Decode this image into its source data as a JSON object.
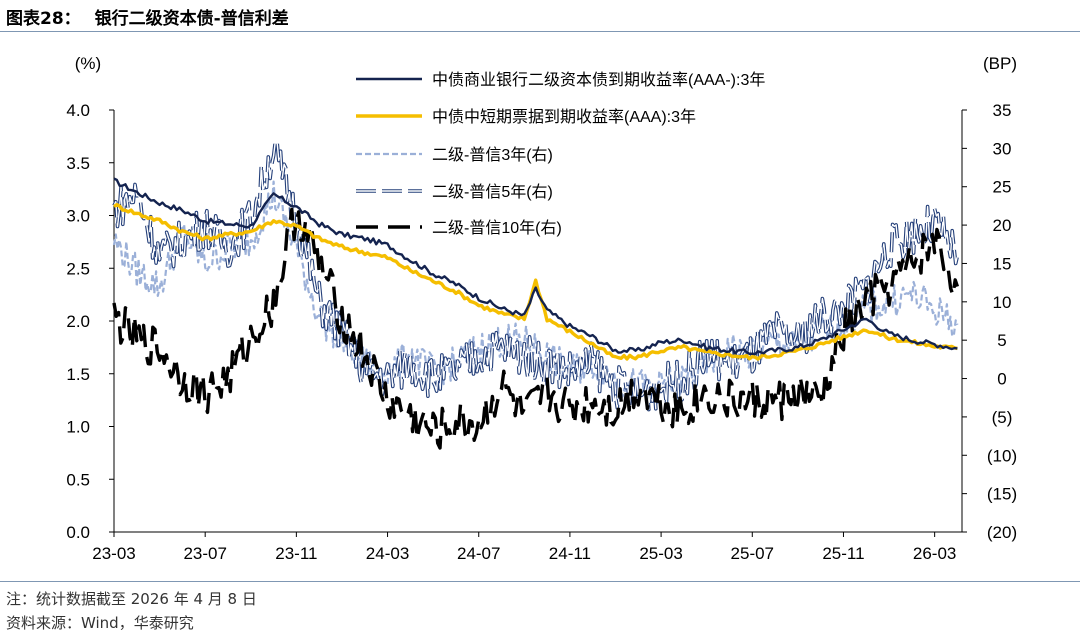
{
  "header": {
    "figure_label": "图表28：",
    "title": "银行二级资本债-普信利差"
  },
  "footer": {
    "note": "注：统计数据截至 2026 年 4 月 8 日",
    "source": "资料来源：Wind，华泰研究"
  },
  "colors": {
    "navy": "#14234f",
    "yellow": "#f5be00",
    "light_blue": "#9bb0d8",
    "five_y_outline": "#25407a",
    "five_y_fill": "#ffffff",
    "black": "#000000",
    "rule": "#7f97b3"
  },
  "chart_data": {
    "type": "line",
    "left_axis_label": "(%)",
    "right_axis_label": "(BP)",
    "left_ylim": [
      0,
      4
    ],
    "left_ticks": [
      "0.0",
      "0.5",
      "1.0",
      "1.5",
      "2.0",
      "2.5",
      "3.0",
      "3.5",
      "4.0"
    ],
    "right_ylim": [
      -20,
      35
    ],
    "right_ticks": [
      "(20)",
      "(15)",
      "(10)",
      "(5)",
      "0",
      "5",
      "10",
      "15",
      "20",
      "25",
      "30",
      "35"
    ],
    "x_ticks": [
      "23-03",
      "23-07",
      "23-11",
      "24-03",
      "24-07",
      "24-11",
      "25-03",
      "25-07",
      "25-11",
      "26-03"
    ],
    "x_range_months": [
      0,
      37.2
    ],
    "series": [
      {
        "name": "中债商业银行二级资本债到期收益率(AAA-):3年",
        "axis": "left",
        "style": "navy",
        "x": [
          0,
          1,
          2,
          3,
          4,
          5,
          6,
          7,
          8,
          9,
          10,
          11,
          12,
          13,
          14,
          15,
          16,
          17,
          18,
          18.5,
          19,
          20,
          21,
          22,
          23,
          24,
          25,
          26,
          27,
          28,
          29,
          30,
          31,
          32,
          33,
          34,
          35,
          36,
          37
        ],
        "values": [
          3.33,
          3.22,
          3.12,
          3.05,
          2.95,
          2.92,
          2.9,
          3.2,
          3.08,
          2.92,
          2.82,
          2.78,
          2.72,
          2.58,
          2.45,
          2.35,
          2.22,
          2.12,
          2.05,
          2.3,
          2.1,
          1.95,
          1.85,
          1.72,
          1.72,
          1.8,
          1.82,
          1.75,
          1.72,
          1.7,
          1.72,
          1.75,
          1.82,
          1.92,
          2.02,
          1.88,
          1.82,
          1.78,
          1.74
        ]
      },
      {
        "name": "中债中短期票据到期收益率(AAA):3年",
        "axis": "left",
        "style": "yellow",
        "x": [
          0,
          1,
          2,
          3,
          4,
          5,
          6,
          7,
          8,
          9,
          10,
          11,
          12,
          13,
          14,
          15,
          16,
          17,
          18,
          18.5,
          19,
          20,
          21,
          22,
          23,
          24,
          25,
          26,
          27,
          28,
          29,
          30,
          31,
          32,
          33,
          34,
          35,
          36,
          37
        ],
        "values": [
          3.1,
          3.02,
          2.95,
          2.85,
          2.78,
          2.82,
          2.85,
          2.95,
          2.9,
          2.78,
          2.7,
          2.65,
          2.6,
          2.48,
          2.38,
          2.28,
          2.15,
          2.07,
          2.02,
          2.38,
          2.02,
          1.9,
          1.78,
          1.65,
          1.66,
          1.72,
          1.75,
          1.7,
          1.68,
          1.65,
          1.68,
          1.72,
          1.78,
          1.85,
          1.92,
          1.84,
          1.8,
          1.76,
          1.74
        ]
      },
      {
        "name": "二级-普信3年(右)",
        "axis": "right",
        "style": "dashed-light",
        "x": [
          0,
          1,
          2,
          3,
          4,
          5,
          6,
          7,
          8,
          9,
          10,
          11,
          12,
          13,
          14,
          15,
          16,
          17,
          18,
          19,
          20,
          21,
          22,
          23,
          24,
          25,
          26,
          27,
          28,
          29,
          30,
          31,
          32,
          33,
          34,
          35,
          36,
          37
        ],
        "values": [
          18,
          14,
          12,
          19,
          15,
          17,
          18,
          24,
          17,
          8,
          5,
          2,
          1,
          3,
          1,
          2,
          4,
          5,
          5,
          3,
          1,
          2,
          0,
          -1,
          -1,
          0,
          2,
          4,
          3,
          5,
          4,
          6,
          7,
          9,
          10,
          11,
          9,
          7
        ]
      },
      {
        "name": "二级-普信5年(右)",
        "axis": "right",
        "style": "double-hollow",
        "x": [
          0,
          1,
          2,
          3,
          4,
          5,
          6,
          7,
          8,
          9,
          10,
          11,
          12,
          13,
          14,
          15,
          16,
          17,
          18,
          19,
          20,
          21,
          22,
          23,
          24,
          25,
          26,
          27,
          28,
          29,
          30,
          31,
          32,
          33,
          34,
          35,
          36,
          37
        ],
        "values": [
          22,
          24,
          16,
          18,
          20,
          17,
          21,
          30,
          21,
          10,
          6,
          1,
          0,
          2,
          0,
          1,
          3,
          4,
          3,
          2,
          1,
          2,
          -1,
          -2,
          -1,
          0,
          3,
          2,
          3,
          6,
          5,
          8,
          9,
          12,
          17,
          19,
          20,
          16
        ]
      },
      {
        "name": "二级-普信10年(右)",
        "axis": "right",
        "style": "dashed-black",
        "x": [
          0,
          1,
          2,
          3,
          4,
          5,
          6,
          7,
          8,
          9,
          10,
          11,
          12,
          13,
          14,
          15,
          16,
          17,
          18,
          19,
          20,
          21,
          22,
          23,
          24,
          25,
          26,
          27,
          28,
          29,
          30,
          31,
          32,
          33,
          34,
          35,
          36,
          37
        ],
        "values": [
          8,
          5,
          4,
          0,
          -2,
          0,
          5,
          10,
          22,
          15,
          8,
          3,
          -3,
          -5,
          -7,
          -6,
          -6,
          -1,
          -5,
          -2,
          -4,
          -3,
          -4,
          -1,
          -3,
          -4,
          -2,
          -3,
          -3,
          -3,
          -2,
          -3,
          6,
          10,
          12,
          15,
          18,
          12
        ]
      }
    ],
    "legend_position": "top-center"
  }
}
